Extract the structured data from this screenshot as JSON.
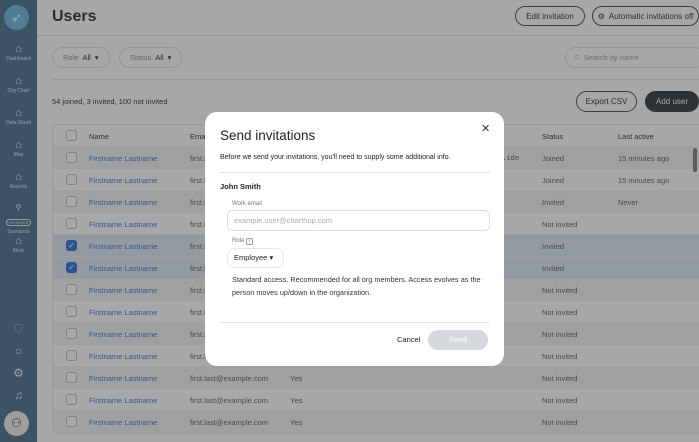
{
  "sidebar": {
    "items": [
      {
        "label": "Dashboard"
      },
      {
        "label": "Org Chart"
      },
      {
        "label": "Data Sheet"
      },
      {
        "label": "Map"
      },
      {
        "label": "Reports"
      },
      {
        "label": "Scenarios",
        "badge": "UPGRADE"
      },
      {
        "label": "More"
      }
    ]
  },
  "header": {
    "title": "Users",
    "edit_invitation": "Edit invitation",
    "auto_invitations": "Automatic invitations off"
  },
  "filters": {
    "role_label": "Role",
    "role_value": "All",
    "status_label": "Status",
    "status_value": "All",
    "search_placeholder": "Search by name"
  },
  "summary": "54 joined, 3 invited, 100 not invited",
  "actions": {
    "export": "Export CSV",
    "add_user": "Add user"
  },
  "table": {
    "columns": [
      "Name",
      "Email",
      "",
      "Status",
      "Last active"
    ],
    "rows": [
      {
        "name": "Firstname Lastname",
        "email": "first.l",
        "col3": "",
        "extra": "r.ide",
        "status": "Joined",
        "last": "15 minutes ago",
        "checked": false
      },
      {
        "name": "Firstname Lastname",
        "email": "first.l",
        "col3": "",
        "status": "Joined",
        "last": "15 minutes ago",
        "checked": false
      },
      {
        "name": "Firstname Lastname",
        "email": "first.l",
        "col3": "",
        "status": "Invited",
        "last": "Never",
        "checked": false
      },
      {
        "name": "Firstname Lastname",
        "email": "first.l",
        "col3": "",
        "status": "Not invited",
        "last": "",
        "checked": false
      },
      {
        "name": "Firstname Lastname",
        "email": "first.l",
        "col3": "",
        "status": "Invited",
        "last": "",
        "checked": true
      },
      {
        "name": "Firstname Lastname",
        "email": "first.l",
        "col3": "",
        "status": "Invited",
        "last": "",
        "checked": true
      },
      {
        "name": "Firstname Lastname",
        "email": "first.l",
        "col3": "",
        "status": "Not invited",
        "last": "",
        "checked": false
      },
      {
        "name": "Firstname Lastname",
        "email": "first.l",
        "col3": "",
        "status": "Not invited",
        "last": "",
        "checked": false
      },
      {
        "name": "Firstname Lastname",
        "email": "first.l",
        "col3": "",
        "status": "Not invited",
        "last": "",
        "checked": false
      },
      {
        "name": "Firstname Lastname",
        "email": "first.l",
        "col3": "",
        "status": "Not invited",
        "last": "",
        "checked": false
      },
      {
        "name": "Firstname Lastname",
        "email": "first.last@example.com",
        "col3": "Yes",
        "status": "Not invited",
        "last": "",
        "checked": false
      },
      {
        "name": "Firstname Lastname",
        "email": "first.last@example.com",
        "col3": "Yes",
        "status": "Not invited",
        "last": "",
        "checked": false
      },
      {
        "name": "Firstname Lastname",
        "email": "first.last@example.com",
        "col3": "Yes",
        "status": "Not invited",
        "last": "",
        "checked": false
      }
    ]
  },
  "modal": {
    "title": "Send invitations",
    "description": "Before we send your invitations, you'll need to supply some additional info.",
    "person": "John Smith",
    "email_label": "Work email",
    "email_placeholder": "example.user@charthop.com",
    "role_label": "Role",
    "role_value": "Employee",
    "role_help": "Standard access. Recommended for all org members. Access evolves as the person moves up/down in the organization.",
    "cancel": "Cancel",
    "send": "Send"
  },
  "colors": {
    "sidebar": "#3d6588",
    "link": "#2f6fd6",
    "checkbox": "#1f64d6",
    "primary_button": "#222b33"
  }
}
